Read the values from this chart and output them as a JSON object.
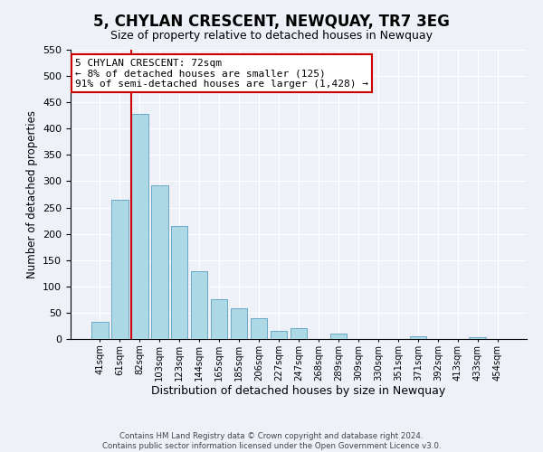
{
  "title": "5, CHYLAN CRESCENT, NEWQUAY, TR7 3EG",
  "subtitle": "Size of property relative to detached houses in Newquay",
  "xlabel": "Distribution of detached houses by size in Newquay",
  "ylabel": "Number of detached properties",
  "bar_labels": [
    "41sqm",
    "61sqm",
    "82sqm",
    "103sqm",
    "123sqm",
    "144sqm",
    "165sqm",
    "185sqm",
    "206sqm",
    "227sqm",
    "247sqm",
    "268sqm",
    "289sqm",
    "309sqm",
    "330sqm",
    "351sqm",
    "371sqm",
    "392sqm",
    "413sqm",
    "433sqm",
    "454sqm"
  ],
  "bar_values": [
    32,
    265,
    428,
    292,
    214,
    129,
    76,
    59,
    40,
    15,
    21,
    0,
    10,
    0,
    0,
    0,
    5,
    0,
    0,
    4,
    0
  ],
  "bar_color": "#add8e6",
  "bar_edge_color": "#5a9fc0",
  "ylim": [
    0,
    550
  ],
  "yticks": [
    0,
    50,
    100,
    150,
    200,
    250,
    300,
    350,
    400,
    450,
    500,
    550
  ],
  "vline_color": "#cc0000",
  "annotation_title": "5 CHYLAN CRESCENT: 72sqm",
  "annotation_line1": "← 8% of detached houses are smaller (125)",
  "annotation_line2": "91% of semi-detached houses are larger (1,428) →",
  "annotation_box_color": "#ffffff",
  "annotation_box_edge": "#cc0000",
  "footer_line1": "Contains HM Land Registry data © Crown copyright and database right 2024.",
  "footer_line2": "Contains public sector information licensed under the Open Government Licence v3.0.",
  "bg_color": "#eef2f8"
}
